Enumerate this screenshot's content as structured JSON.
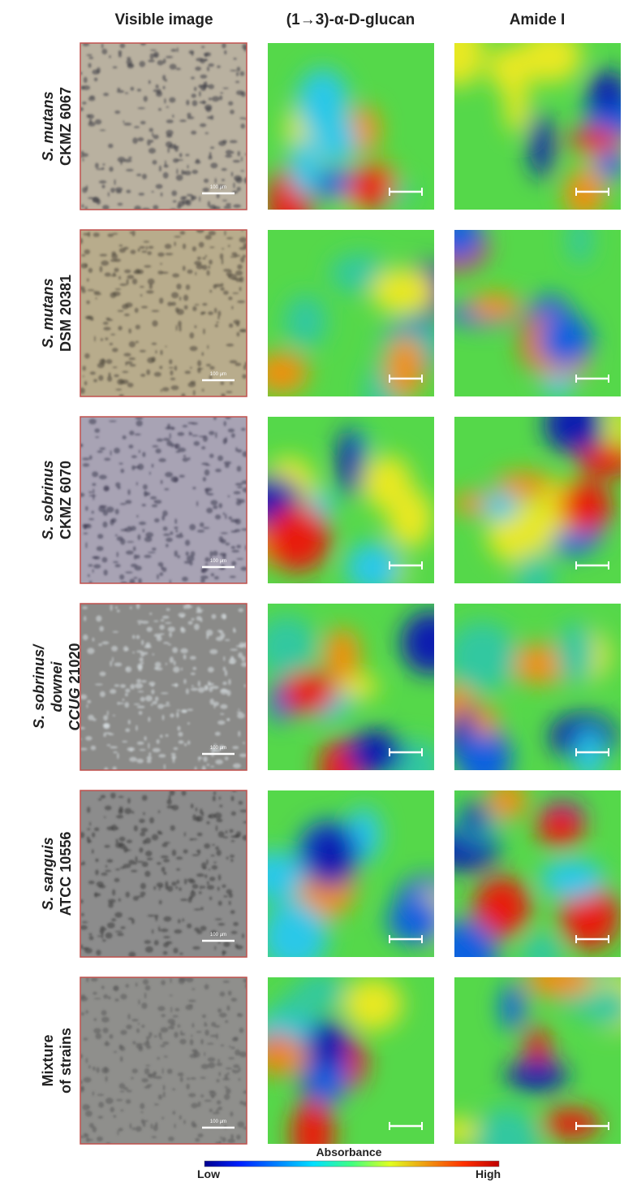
{
  "headers": [
    "Visible image",
    "(1→3)-α-D-glucan",
    "Amide I"
  ],
  "scale_label": "100 µm",
  "rows": [
    {
      "lines": [
        [
          {
            "text": "S. mutans",
            "italic": true
          }
        ],
        [
          {
            "text": "CKMZ 6067",
            "italic": false
          }
        ]
      ]
    },
    {
      "lines": [
        [
          {
            "text": "S. mutans",
            "italic": true
          }
        ],
        [
          {
            "text": "DSM 20381",
            "italic": false
          }
        ]
      ]
    },
    {
      "lines": [
        [
          {
            "text": "S. sobrinus",
            "italic": true
          }
        ],
        [
          {
            "text": "CKMZ 6070",
            "italic": false
          }
        ]
      ]
    },
    {
      "lines": [
        [
          {
            "text": "S. sobrinus/",
            "italic": true
          }
        ],
        [
          {
            "text": "downei",
            "italic": true
          }
        ],
        [
          {
            "text": "CCUG",
            "italic": true
          },
          {
            "text": " 21020",
            "italic": false
          }
        ]
      ]
    },
    {
      "lines": [
        [
          {
            "text": "S. sanguis",
            "italic": true
          }
        ],
        [
          {
            "text": "ATCC 10556",
            "italic": false
          }
        ]
      ]
    },
    {
      "lines": [
        [
          {
            "text": "Mixture",
            "italic": false
          }
        ],
        [
          {
            "text": "of strains",
            "italic": false
          }
        ]
      ]
    }
  ],
  "colorbar": {
    "title": "Absorbance",
    "low": "Low",
    "high": "High"
  }
}
